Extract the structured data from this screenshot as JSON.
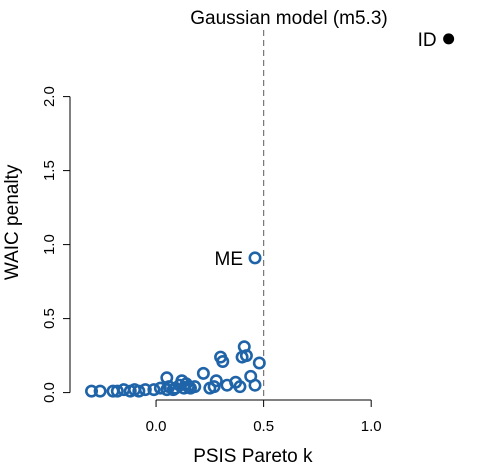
{
  "chart_data": {
    "type": "scatter",
    "title": "Gaussian model (m5.3)",
    "xlabel": "PSIS Pareto k",
    "ylabel": "WAIC penalty",
    "xlim": [
      -0.4,
      1.45
    ],
    "ylim": [
      -0.05,
      2.45
    ],
    "xticks": [
      0.0,
      0.5,
      1.0
    ],
    "xtick_labels": [
      "0.0",
      "0.5",
      "1.0"
    ],
    "yticks": [
      0.0,
      0.5,
      1.0,
      1.5,
      2.0
    ],
    "ytick_labels": [
      "0.0",
      "0.5",
      "1.0",
      "1.5",
      "2.0"
    ],
    "reference_line_x": 0.5,
    "reference_line_style": "dashed",
    "grid": false,
    "colors": {
      "open_points": "#1f64a8",
      "filled_points": "#000000",
      "reference_line": "#777777"
    },
    "series": [
      {
        "marker": "open-circle",
        "x": [
          -0.3,
          -0.26,
          -0.2,
          -0.18,
          -0.15,
          -0.12,
          -0.1,
          -0.08,
          -0.05,
          -0.01,
          0.02,
          0.05,
          0.05,
          0.06,
          0.08,
          0.09,
          0.11,
          0.12,
          0.13,
          0.14,
          0.15,
          0.16,
          0.18,
          0.22,
          0.25,
          0.27,
          0.28,
          0.3,
          0.31,
          0.33,
          0.37,
          0.39,
          0.4,
          0.41,
          0.42,
          0.44,
          0.46,
          0.48
        ],
        "y": [
          0.01,
          0.01,
          0.01,
          0.01,
          0.02,
          0.01,
          0.02,
          0.01,
          0.02,
          0.02,
          0.03,
          0.1,
          0.02,
          0.04,
          0.02,
          0.03,
          0.05,
          0.08,
          0.03,
          0.06,
          0.04,
          0.03,
          0.04,
          0.13,
          0.03,
          0.04,
          0.08,
          0.24,
          0.21,
          0.05,
          0.07,
          0.04,
          0.24,
          0.31,
          0.25,
          0.11,
          0.05,
          0.2
        ]
      },
      {
        "marker": "open-circle",
        "x": [
          0.46
        ],
        "y": [
          0.91
        ],
        "labels": [
          "ME"
        ]
      },
      {
        "marker": "filled-circle",
        "x": [
          1.36
        ],
        "y": [
          2.39
        ],
        "labels": [
          "ID"
        ]
      }
    ]
  }
}
